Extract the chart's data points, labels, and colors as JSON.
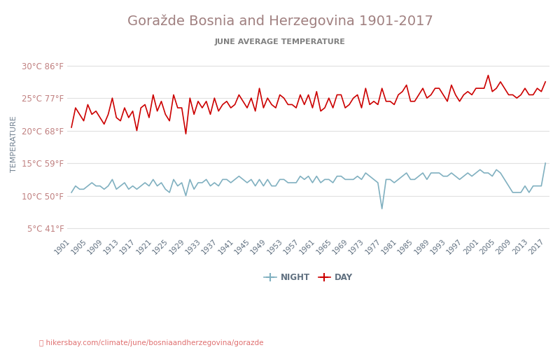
{
  "title": "Goražde Bosnia and Herzegovina 1901-2017",
  "subtitle": "JUNE AVERAGE TEMPERATURE",
  "ylabel": "TEMPERATURE",
  "xlabel_url": "hikersbay.com/climate/june/bosniaandherzegovina/gorazde",
  "years": [
    1901,
    1902,
    1903,
    1904,
    1905,
    1906,
    1907,
    1908,
    1909,
    1910,
    1911,
    1912,
    1913,
    1914,
    1915,
    1916,
    1917,
    1918,
    1919,
    1920,
    1921,
    1922,
    1923,
    1924,
    1925,
    1926,
    1927,
    1928,
    1929,
    1930,
    1931,
    1932,
    1933,
    1934,
    1935,
    1936,
    1937,
    1938,
    1939,
    1940,
    1941,
    1942,
    1943,
    1944,
    1945,
    1946,
    1947,
    1948,
    1949,
    1950,
    1951,
    1952,
    1953,
    1954,
    1955,
    1956,
    1957,
    1958,
    1959,
    1960,
    1961,
    1962,
    1963,
    1964,
    1965,
    1966,
    1967,
    1968,
    1969,
    1970,
    1971,
    1972,
    1973,
    1974,
    1975,
    1976,
    1977,
    1978,
    1979,
    1980,
    1981,
    1982,
    1983,
    1984,
    1985,
    1986,
    1987,
    1988,
    1989,
    1990,
    1991,
    1992,
    1993,
    1994,
    1995,
    1996,
    1997,
    1998,
    1999,
    2000,
    2001,
    2002,
    2003,
    2004,
    2005,
    2006,
    2007,
    2008,
    2009,
    2010,
    2011,
    2012,
    2013,
    2014,
    2015,
    2016,
    2017
  ],
  "day_temps": [
    20.5,
    23.5,
    22.5,
    21.5,
    24.0,
    22.5,
    23.0,
    22.0,
    21.0,
    22.5,
    25.0,
    22.0,
    21.5,
    23.5,
    22.0,
    23.0,
    20.0,
    23.5,
    24.0,
    22.0,
    25.5,
    23.0,
    24.5,
    22.5,
    21.5,
    25.5,
    23.5,
    23.5,
    19.5,
    25.0,
    22.5,
    24.5,
    23.5,
    24.5,
    22.5,
    25.0,
    23.0,
    24.0,
    24.5,
    23.5,
    24.0,
    25.5,
    24.5,
    23.5,
    25.0,
    23.0,
    26.5,
    23.5,
    25.0,
    24.0,
    23.5,
    25.5,
    25.0,
    24.0,
    24.0,
    23.5,
    25.5,
    24.0,
    25.5,
    23.5,
    26.0,
    23.0,
    23.5,
    25.0,
    23.5,
    25.5,
    25.5,
    23.5,
    24.0,
    25.0,
    25.5,
    23.5,
    26.5,
    24.0,
    24.5,
    24.0,
    26.5,
    24.5,
    24.5,
    24.0,
    25.5,
    26.0,
    27.0,
    24.5,
    24.5,
    25.5,
    26.5,
    25.0,
    25.5,
    26.5,
    26.5,
    25.5,
    24.5,
    27.0,
    25.5,
    24.5,
    25.5,
    26.0,
    25.5,
    26.5,
    26.5,
    26.5,
    28.5,
    26.0,
    26.5,
    27.5,
    26.5,
    25.5,
    25.5,
    25.0,
    25.5,
    26.5,
    25.5,
    25.5,
    26.5,
    26.0,
    27.5
  ],
  "night_temps": [
    10.5,
    11.5,
    11.0,
    11.0,
    11.5,
    12.0,
    11.5,
    11.5,
    11.0,
    11.5,
    12.5,
    11.0,
    11.5,
    12.0,
    11.0,
    11.5,
    11.0,
    11.5,
    12.0,
    11.5,
    12.5,
    11.5,
    12.0,
    11.0,
    10.5,
    12.5,
    11.5,
    12.0,
    10.0,
    12.5,
    11.0,
    12.0,
    12.0,
    12.5,
    11.5,
    12.0,
    11.5,
    12.5,
    12.5,
    12.0,
    12.5,
    13.0,
    12.5,
    12.0,
    12.5,
    11.5,
    12.5,
    11.5,
    12.5,
    11.5,
    11.5,
    12.5,
    12.5,
    12.0,
    12.0,
    12.0,
    13.0,
    12.5,
    13.0,
    12.0,
    13.0,
    12.0,
    12.5,
    12.5,
    12.0,
    13.0,
    13.0,
    12.5,
    12.5,
    12.5,
    13.0,
    12.5,
    13.5,
    13.0,
    12.5,
    12.0,
    8.0,
    12.5,
    12.5,
    12.0,
    12.5,
    13.0,
    13.5,
    12.5,
    12.5,
    13.0,
    13.5,
    12.5,
    13.5,
    13.5,
    13.5,
    13.0,
    13.0,
    13.5,
    13.0,
    12.5,
    13.0,
    13.5,
    13.0,
    13.5,
    14.0,
    13.5,
    13.5,
    13.0,
    14.0,
    13.5,
    12.5,
    11.5,
    10.5,
    10.5,
    10.5,
    11.5,
    10.5,
    11.5,
    11.5,
    11.5,
    15.0
  ],
  "title_color": "#a08080",
  "subtitle_color": "#808080",
  "day_color": "#cc0000",
  "night_color": "#80b0c0",
  "ylabel_color": "#708090",
  "grid_color": "#e0e0e0",
  "tick_color": "#c08080",
  "bg_color": "#ffffff",
  "yticks_c": [
    5,
    10,
    15,
    20,
    25,
    30
  ],
  "yticks_f": [
    41,
    50,
    59,
    68,
    77,
    86
  ],
  "ylim": [
    4,
    32
  ],
  "url_color": "#e07070",
  "legend_night": "NIGHT",
  "legend_day": "DAY"
}
